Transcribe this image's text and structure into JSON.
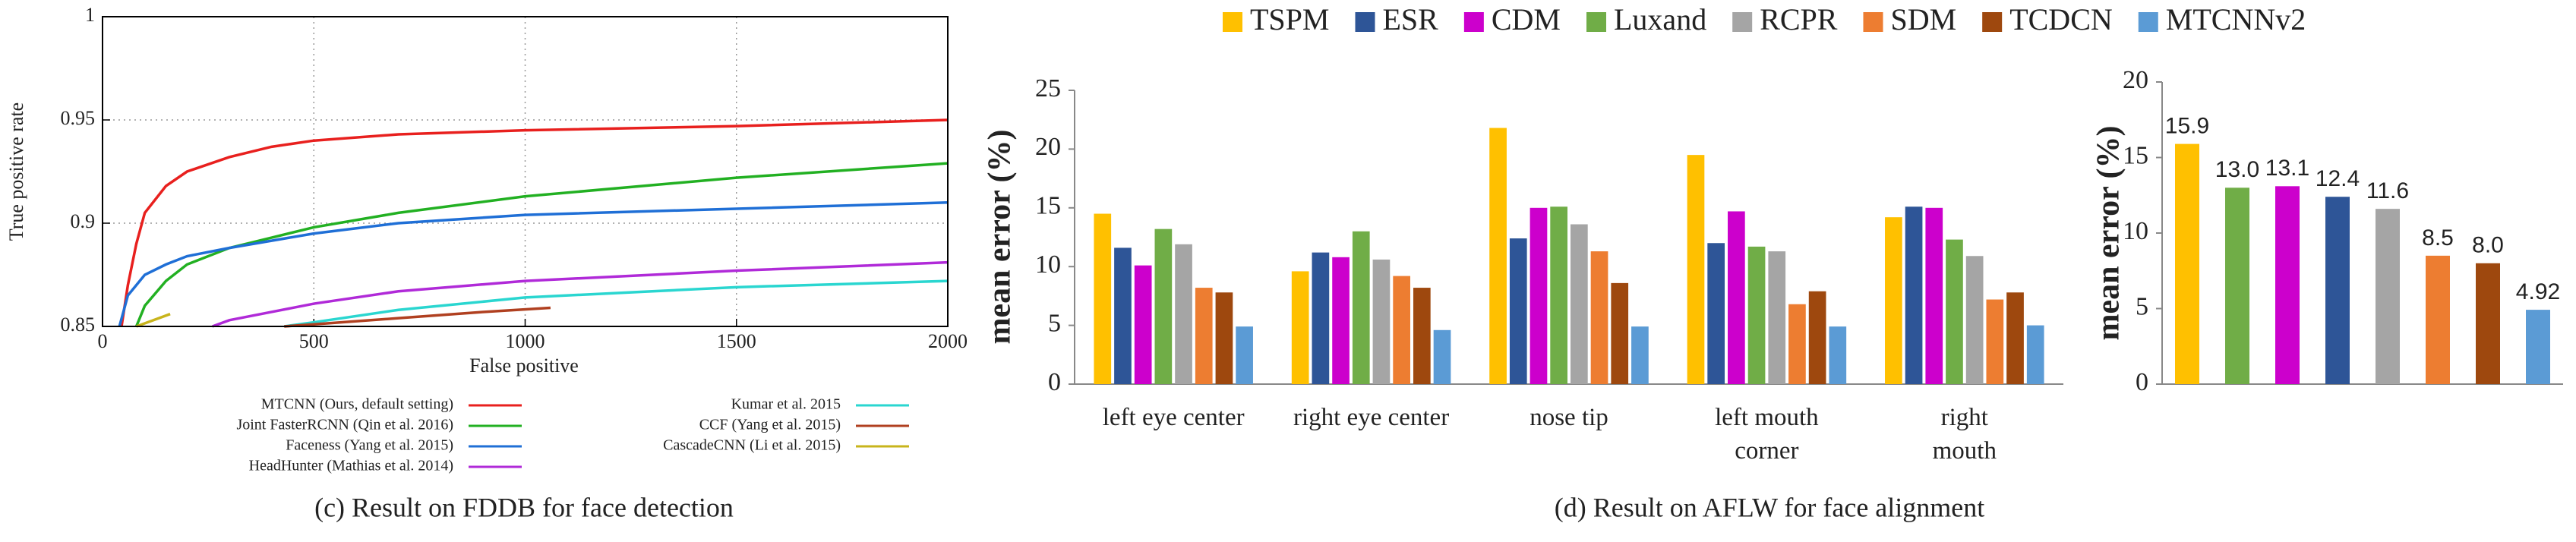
{
  "chart_data": [
    {
      "type": "line",
      "caption": "(c) Result on FDDB for face detection",
      "xlabel": "False positive",
      "ylabel": "True positive rate",
      "xlim": [
        0,
        2000
      ],
      "xticks": [
        0,
        500,
        1000,
        1500,
        2000
      ],
      "ylim": [
        0.85,
        1
      ],
      "yticks": [
        0.85,
        0.9,
        0.95,
        1
      ],
      "grid": true,
      "series": [
        {
          "name": "MTCNN (Ours, default setting)",
          "color": "#e8201e",
          "x": [
            45,
            60,
            80,
            100,
            150,
            200,
            300,
            400,
            500,
            700,
            1000,
            1500,
            2000
          ],
          "values": [
            0.85,
            0.87,
            0.89,
            0.905,
            0.918,
            0.925,
            0.932,
            0.937,
            0.94,
            0.943,
            0.945,
            0.947,
            0.95
          ]
        },
        {
          "name": "Joint FasterRCNN (Qin et al. 2016)",
          "color": "#22b022",
          "x": [
            80,
            100,
            150,
            200,
            300,
            400,
            500,
            700,
            1000,
            1500,
            2000
          ],
          "values": [
            0.85,
            0.86,
            0.872,
            0.88,
            0.888,
            0.893,
            0.898,
            0.905,
            0.913,
            0.922,
            0.929
          ]
        },
        {
          "name": "Faceness (Yang et al. 2015)",
          "color": "#1f6fd6",
          "x": [
            40,
            60,
            100,
            150,
            200,
            300,
            500,
            700,
            1000,
            1500,
            2000
          ],
          "values": [
            0.85,
            0.865,
            0.875,
            0.88,
            0.884,
            0.888,
            0.895,
            0.9,
            0.904,
            0.907,
            0.91
          ]
        },
        {
          "name": "HeadHunter (Mathias et al. 2014)",
          "color": "#b02ad8",
          "x": [
            260,
            300,
            400,
            500,
            700,
            1000,
            1500,
            2000
          ],
          "values": [
            0.85,
            0.853,
            0.857,
            0.861,
            0.867,
            0.872,
            0.877,
            0.881
          ]
        },
        {
          "name": "Kumar et al. 2015",
          "color": "#2ad6d0",
          "x": [
            430,
            500,
            700,
            1000,
            1500,
            2000
          ],
          "values": [
            0.85,
            0.852,
            0.858,
            0.864,
            0.869,
            0.872
          ]
        },
        {
          "name": "CCF (Yang et al. 2015)",
          "color": "#b04020",
          "x": [
            430,
            500,
            700,
            900,
            1060
          ],
          "values": [
            0.85,
            0.851,
            0.854,
            0.857,
            0.859
          ]
        },
        {
          "name": "CascadeCNN (Li et al. 2015)",
          "color": "#c8b41c",
          "x": [
            80,
            120,
            160
          ],
          "values": [
            0.85,
            0.853,
            0.856
          ]
        }
      ]
    },
    {
      "type": "bar",
      "caption": "(d) Result on AFLW for face alignment",
      "ylabel": "mean error (%)",
      "categories": [
        "left eye center",
        "right eye center",
        "nose tip",
        "left mouth corner",
        "right mouth corner"
      ],
      "ylim": [
        0,
        25
      ],
      "yticks": [
        0,
        5,
        10,
        15,
        20,
        25
      ],
      "series": [
        {
          "name": "TSPM",
          "color": "#ffc000",
          "values": [
            14.5,
            9.6,
            21.8,
            19.5,
            14.2
          ]
        },
        {
          "name": "ESR",
          "color": "#2e5597",
          "values": [
            11.6,
            11.2,
            12.4,
            12.0,
            15.1
          ]
        },
        {
          "name": "CDM",
          "color": "#cc00cc",
          "values": [
            10.1,
            10.8,
            15.0,
            14.7,
            15.0
          ]
        },
        {
          "name": "Luxand",
          "color": "#70ad47",
          "values": [
            13.2,
            13.0,
            15.1,
            11.7,
            12.3
          ]
        },
        {
          "name": "RCPR",
          "color": "#a5a5a5",
          "values": [
            11.9,
            10.6,
            13.6,
            11.3,
            10.9
          ]
        },
        {
          "name": "SDM",
          "color": "#ed7d31",
          "values": [
            8.2,
            9.2,
            11.3,
            6.8,
            7.2
          ]
        },
        {
          "name": "TCDCN",
          "color": "#9e480e",
          "values": [
            7.8,
            8.2,
            8.6,
            7.9,
            7.8
          ]
        },
        {
          "name": "MTCNNv2",
          "color": "#5b9bd5",
          "values": [
            4.9,
            4.6,
            4.9,
            4.9,
            5.0
          ]
        }
      ]
    },
    {
      "type": "column",
      "ylabel": "mean error (%)",
      "ylim": [
        0,
        20
      ],
      "yticks": [
        0,
        5,
        10,
        15,
        20
      ],
      "categories": [
        null,
        null,
        null,
        null,
        null,
        null,
        null,
        null
      ],
      "values": [
        15.9,
        13.0,
        13.1,
        12.4,
        11.6,
        8.5,
        8.0,
        4.92
      ],
      "value_labels": [
        "15.9",
        "13.0",
        "13.1",
        "12.4",
        "11.6",
        "8.5",
        "8.0",
        "4.92"
      ],
      "colors": [
        "#ffc000",
        "#70ad47",
        "#cc00cc",
        "#2e5597",
        "#a5a5a5",
        "#ed7d31",
        "#9e480e",
        "#5b9bd5"
      ]
    }
  ]
}
